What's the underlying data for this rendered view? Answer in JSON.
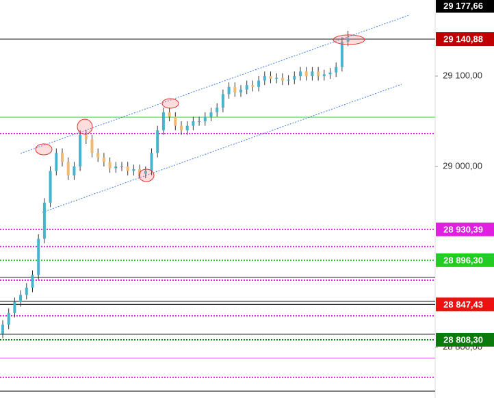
{
  "chart_data": {
    "type": "candlestick",
    "ylim": [
      28743.9,
      29184.1
    ],
    "yticks": [
      {
        "value": 29100,
        "label": "29 100,00"
      },
      {
        "value": 29000,
        "label": "29 000,00"
      },
      {
        "value": 28800,
        "label": "28 800,00"
      }
    ],
    "up_color": "#47b3cc",
    "down_color": "#f0b870",
    "open": [
      28815,
      28825,
      28838,
      28850,
      28858,
      28866,
      28880,
      28920,
      28960,
      28995,
      29015,
      29005,
      28990,
      29000,
      29035,
      29030,
      29015,
      29010,
      29005,
      28998,
      29000,
      29000,
      28995,
      28997,
      28992,
      28995,
      29015,
      29040,
      29060,
      29055,
      29045,
      29040,
      29045,
      29050,
      29050,
      29055,
      29060,
      29065,
      29080,
      29088,
      29082,
      29085,
      29090,
      29088,
      29095,
      29100,
      29097,
      29098,
      29095,
      29096,
      29100,
      29105,
      29100,
      29105,
      29100,
      29102,
      29104,
      29110,
      29138
    ],
    "high": [
      28830,
      28843,
      28855,
      28863,
      28871,
      28885,
      28925,
      28965,
      29000,
      29020,
      29020,
      29010,
      29005,
      29040,
      29040,
      29035,
      29020,
      29015,
      29010,
      29005,
      29005,
      29005,
      29002,
      29002,
      29000,
      29020,
      29045,
      29065,
      29065,
      29060,
      29050,
      29050,
      29055,
      29055,
      29060,
      29065,
      29070,
      29085,
      29093,
      29093,
      29090,
      29095,
      29095,
      29100,
      29105,
      29105,
      29103,
      29103,
      29101,
      29105,
      29110,
      29110,
      29110,
      29110,
      29107,
      29109,
      29115,
      29143,
      29150
    ],
    "low": [
      28810,
      28820,
      28833,
      28845,
      28853,
      28861,
      28875,
      28915,
      28955,
      28990,
      29000,
      28985,
      28985,
      28995,
      29025,
      29010,
      29005,
      29000,
      28993,
      28993,
      28995,
      28990,
      28990,
      28987,
      28987,
      28990,
      29010,
      29035,
      29050,
      29040,
      29035,
      29035,
      29040,
      29045,
      29045,
      29050,
      29055,
      29060,
      29075,
      29077,
      29077,
      29080,
      29083,
      29083,
      29090,
      29092,
      29092,
      29090,
      29090,
      29091,
      29095,
      29095,
      29095,
      29095,
      29095,
      29097,
      29099,
      29105,
      29133
    ],
    "close": [
      28825,
      28838,
      28850,
      28858,
      28866,
      28880,
      28920,
      28960,
      28995,
      29015,
      29005,
      28990,
      29000,
      29035,
      29030,
      29015,
      29010,
      29005,
      28998,
      29000,
      29000,
      28995,
      28997,
      28992,
      28995,
      29015,
      29040,
      29060,
      29055,
      29045,
      29040,
      29045,
      29050,
      29050,
      29055,
      29060,
      29065,
      29080,
      29088,
      29082,
      29085,
      29090,
      29088,
      29095,
      29100,
      29097,
      29098,
      29095,
      29096,
      29100,
      29105,
      29100,
      29105,
      29100,
      29102,
      29104,
      29110,
      29138,
      29142
    ],
    "levels": [
      {
        "value": 29140.88,
        "color": "#333333",
        "dash": false
      },
      {
        "value": 29054.5,
        "color": "#44dd44",
        "dash": false
      },
      {
        "value": 29036.4,
        "color": "#dd22dd",
        "dash": true
      },
      {
        "value": 28930.39,
        "color": "#dd22dd",
        "dash": true
      },
      {
        "value": 28911.4,
        "color": "#dd22dd",
        "dash": true
      },
      {
        "value": 28896.3,
        "color": "#22bb22",
        "dash": true
      },
      {
        "value": 28877.3,
        "color": "#333333",
        "dash": false
      },
      {
        "value": 28874.2,
        "color": "#dd22dd",
        "dash": true
      },
      {
        "value": 28850.8,
        "color": "#333333",
        "dash": false
      },
      {
        "value": 28847.43,
        "color": "#333333",
        "dash": false
      },
      {
        "value": 28834.8,
        "color": "#dd22dd",
        "dash": true
      },
      {
        "value": 28814.4,
        "color": "#333333",
        "dash": false
      },
      {
        "value": 28808.3,
        "color": "#0a7a0a",
        "dash": true
      },
      {
        "value": 28787.9,
        "color": "#ee66ee",
        "dash": false
      },
      {
        "value": 28766.7,
        "color": "#dd22dd",
        "dash": true
      },
      {
        "value": 28751.5,
        "color": "#333333",
        "dash": false
      }
    ],
    "price_tags": [
      {
        "value": 29177.66,
        "label": "29 177,66",
        "color": "#000000"
      },
      {
        "value": 29140.88,
        "label": "29 140,88",
        "color": "#c00000"
      },
      {
        "value": 28930.39,
        "label": "28 930,39",
        "color": "#e020e0"
      },
      {
        "value": 28896.3,
        "label": "28 896,30",
        "color": "#22cc22"
      },
      {
        "value": 28847.43,
        "label": "28 847,43",
        "color": "#ee1111"
      },
      {
        "value": 28808.3,
        "label": "28 808,30",
        "color": "#0a7a0a"
      }
    ]
  }
}
